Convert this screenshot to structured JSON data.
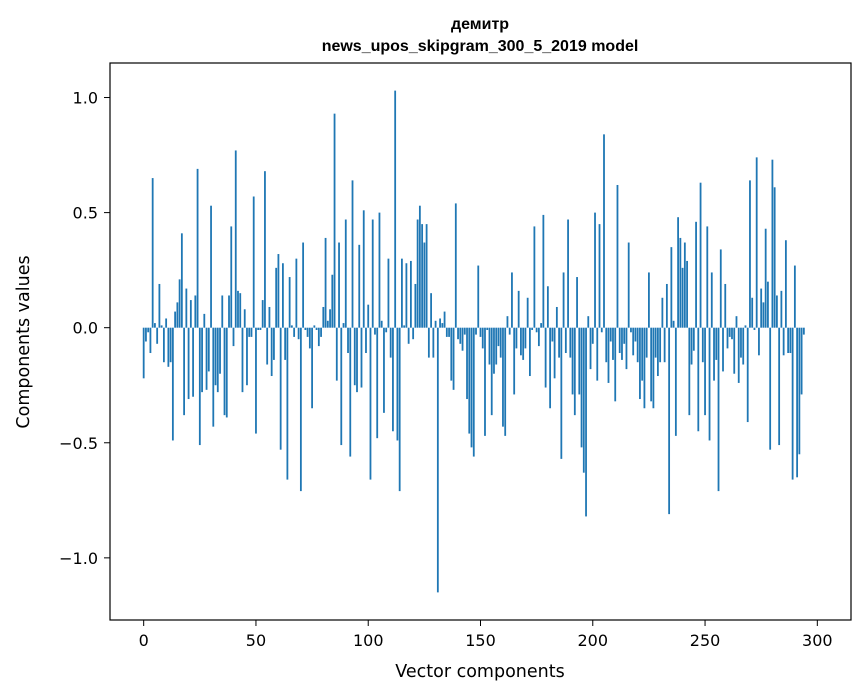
{
  "chart_data": {
    "type": "bar",
    "title": [
      "демитр",
      "news_upos_skipgram_300_5_2019 model"
    ],
    "xlabel": "Vector components",
    "ylabel": "Components values",
    "xlim": [
      -15,
      315
    ],
    "ylim": [
      -1.27,
      1.15
    ],
    "xticks": [
      0,
      50,
      100,
      150,
      200,
      250,
      300
    ],
    "xtick_labels": [
      "0",
      "50",
      "100",
      "150",
      "200",
      "250",
      "300"
    ],
    "yticks": [
      -1.0,
      -0.5,
      0.0,
      0.5,
      1.0
    ],
    "ytick_labels": [
      "−1.0",
      "−0.5",
      "0.0",
      "0.5",
      "1.0"
    ],
    "grid": false,
    "series": [
      {
        "color": "#1f77b4",
        "values": [
          -0.22,
          -0.06,
          -0.02,
          -0.11,
          0.65,
          0.02,
          -0.07,
          0.19,
          0.01,
          -0.15,
          0.04,
          -0.17,
          -0.15,
          -0.49,
          0.07,
          0.11,
          0.21,
          0.41,
          -0.38,
          0.17,
          -0.31,
          0.12,
          -0.3,
          0.14,
          0.69,
          -0.51,
          -0.28,
          0.06,
          -0.27,
          -0.19,
          0.53,
          -0.43,
          -0.25,
          -0.28,
          -0.2,
          0.14,
          -0.38,
          -0.39,
          0.14,
          0.44,
          -0.08,
          0.77,
          0.16,
          0.15,
          -0.28,
          0.08,
          -0.25,
          -0.04,
          -0.04,
          0.57,
          -0.46,
          -0.01,
          -0.01,
          0.12,
          0.68,
          -0.16,
          0.09,
          -0.21,
          -0.14,
          0.26,
          0.32,
          -0.53,
          0.28,
          -0.14,
          -0.66,
          0.22,
          0.01,
          -0.04,
          0.3,
          -0.05,
          -0.71,
          0.37,
          -0.01,
          -0.04,
          -0.09,
          -0.35,
          0.01,
          -0.01,
          -0.08,
          -0.04,
          0.09,
          0.39,
          0.03,
          0.08,
          0.23,
          0.93,
          -0.23,
          0.37,
          -0.51,
          0.02,
          0.47,
          -0.11,
          -0.56,
          0.64,
          -0.25,
          -0.28,
          0.36,
          -0.26,
          0.51,
          -0.11,
          0.1,
          -0.66,
          0.47,
          -0.03,
          -0.48,
          0.5,
          0.03,
          -0.37,
          -0.02,
          0.3,
          -0.13,
          -0.45,
          1.03,
          -0.49,
          -0.71,
          0.3,
          0.01,
          0.28,
          -0.07,
          0.29,
          -0.05,
          0.19,
          0.47,
          0.53,
          0.45,
          0.37,
          0.45,
          -0.13,
          0.15,
          -0.13,
          0.03,
          -1.15,
          0.04,
          0.02,
          0.07,
          -0.04,
          -0.04,
          -0.23,
          -0.27,
          0.54,
          -0.05,
          -0.07,
          -0.1,
          -0.03,
          -0.31,
          -0.46,
          -0.52,
          -0.56,
          -0.03,
          0.27,
          -0.04,
          -0.09,
          -0.47,
          -0.01,
          -0.16,
          -0.38,
          -0.2,
          -0.16,
          -0.08,
          -0.13,
          -0.43,
          -0.47,
          0.05,
          -0.03,
          0.24,
          -0.29,
          -0.09,
          0.16,
          -0.12,
          -0.14,
          -0.09,
          0.13,
          -0.21,
          -0.01,
          0.44,
          -0.02,
          -0.08,
          0.02,
          0.49,
          -0.26,
          0.18,
          -0.35,
          -0.06,
          -0.22,
          0.09,
          -0.13,
          -0.57,
          0.24,
          -0.11,
          0.47,
          -0.13,
          -0.29,
          -0.38,
          0.22,
          -0.29,
          -0.52,
          -0.63,
          -0.82,
          0.05,
          -0.18,
          -0.07,
          0.5,
          -0.23,
          0.45,
          -0.02,
          0.84,
          -0.15,
          -0.24,
          -0.06,
          -0.14,
          -0.32,
          0.62,
          -0.11,
          -0.14,
          -0.07,
          -0.18,
          0.37,
          -0.02,
          -0.12,
          -0.06,
          -0.15,
          -0.31,
          -0.23,
          -0.35,
          -0.13,
          0.24,
          -0.32,
          -0.35,
          -0.13,
          -0.21,
          -0.15,
          0.13,
          -0.15,
          0.19,
          -0.81,
          0.35,
          0.03,
          -0.47,
          0.48,
          0.39,
          0.26,
          0.37,
          0.29,
          -0.38,
          -0.16,
          -0.1,
          0.46,
          -0.45,
          0.63,
          -0.15,
          -0.38,
          0.44,
          -0.49,
          0.24,
          -0.23,
          -0.14,
          -0.71,
          0.34,
          -0.19,
          0.19,
          -0.09,
          -0.04,
          -0.05,
          -0.2,
          0.05,
          -0.24,
          -0.13,
          -0.16,
          0.01,
          -0.41,
          0.64,
          0.13,
          -0.01,
          0.74,
          -0.12,
          0.17,
          0.11,
          0.43,
          0.2,
          -0.53,
          0.73,
          0.61,
          0.14,
          -0.51,
          0.16,
          -0.12,
          0.38,
          -0.11,
          -0.11,
          -0.66,
          0.27,
          -0.65,
          -0.55,
          -0.29,
          -0.03
        ]
      }
    ]
  }
}
